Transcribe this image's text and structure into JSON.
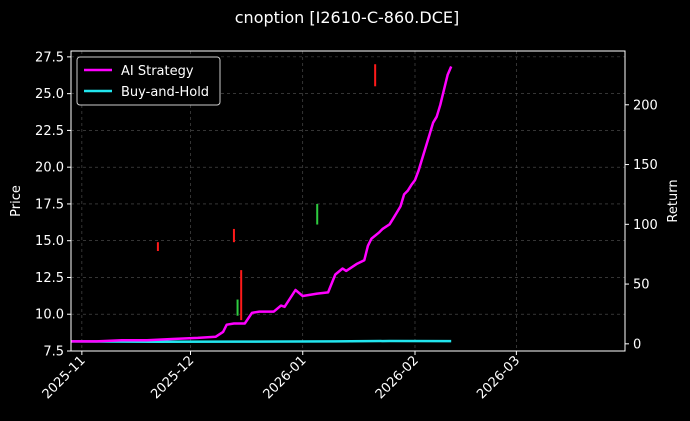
{
  "chart_data": {
    "type": "line",
    "title": "cnoption [I2610-C-860.DCE]",
    "left_axis": {
      "label": "Price",
      "range": [
        7.5,
        27.9
      ],
      "ticks": [
        7.5,
        10.0,
        12.5,
        15.0,
        17.5,
        20.0,
        22.5,
        25.0,
        27.5
      ],
      "tick_labels": [
        "7.5",
        "10.0",
        "12.5",
        "15.0",
        "17.5",
        "20.0",
        "22.5",
        "25.0",
        "27.5"
      ]
    },
    "right_axis": {
      "label": "Return",
      "range": [
        -6,
        245
      ],
      "ticks": [
        0,
        50,
        100,
        150,
        200
      ],
      "tick_labels": [
        "0",
        "50",
        "100",
        "150",
        "200"
      ]
    },
    "x_axis": {
      "range": [
        "2025-10-29",
        "2026-03-31"
      ],
      "ticks": [
        "2025-11-01",
        "2025-12-01",
        "2026-01-01",
        "2026-02-01",
        "2026-03-01"
      ],
      "tick_labels": [
        "2025-11",
        "2025-12",
        "2026-01",
        "2026-02",
        "2026-03"
      ]
    },
    "grid": true,
    "legend_position": "top-left",
    "series": [
      {
        "name": "AI Strategy",
        "color": "#ff00ff",
        "axis": "right",
        "points": [
          [
            "2025-10-29",
            2
          ],
          [
            "2025-11-05",
            2
          ],
          [
            "2025-11-12",
            3
          ],
          [
            "2025-11-19",
            3
          ],
          [
            "2025-11-26",
            4
          ],
          [
            "2025-12-03",
            5
          ],
          [
            "2025-12-08",
            6
          ],
          [
            "2025-12-10",
            10
          ],
          [
            "2025-12-11",
            16
          ],
          [
            "2025-12-13",
            17
          ],
          [
            "2025-12-16",
            17
          ],
          [
            "2025-12-18",
            26
          ],
          [
            "2025-12-20",
            27
          ],
          [
            "2025-12-24",
            27
          ],
          [
            "2025-12-26",
            32
          ],
          [
            "2025-12-27",
            31
          ],
          [
            "2025-12-30",
            45
          ],
          [
            "2026-01-01",
            40
          ],
          [
            "2026-01-05",
            42
          ],
          [
            "2026-01-08",
            43
          ],
          [
            "2026-01-10",
            58
          ],
          [
            "2026-01-12",
            63
          ],
          [
            "2026-01-13",
            61
          ],
          [
            "2026-01-16",
            67
          ],
          [
            "2026-01-18",
            70
          ],
          [
            "2026-01-19",
            82
          ],
          [
            "2026-01-20",
            88
          ],
          [
            "2026-01-22",
            93
          ],
          [
            "2026-01-23",
            96
          ],
          [
            "2026-01-25",
            100
          ],
          [
            "2026-01-26",
            105
          ],
          [
            "2026-01-27",
            110
          ],
          [
            "2026-01-28",
            115
          ],
          [
            "2026-01-29",
            125
          ],
          [
            "2026-01-30",
            128
          ],
          [
            "2026-01-31",
            133
          ],
          [
            "2026-02-01",
            137
          ],
          [
            "2026-02-02",
            145
          ],
          [
            "2026-02-03",
            155
          ],
          [
            "2026-02-05",
            175
          ],
          [
            "2026-02-06",
            185
          ],
          [
            "2026-02-07",
            190
          ],
          [
            "2026-02-08",
            200
          ],
          [
            "2026-02-10",
            225
          ],
          [
            "2026-02-11",
            232
          ]
        ]
      },
      {
        "name": "Buy-and-Hold",
        "color": "#22e5ee",
        "axis": "right",
        "points": [
          [
            "2025-10-29",
            2
          ],
          [
            "2025-11-20",
            1.8
          ],
          [
            "2025-12-15",
            1.9
          ],
          [
            "2026-01-10",
            2.0
          ],
          [
            "2026-01-25",
            2.4
          ],
          [
            "2026-02-11",
            2.3
          ]
        ]
      }
    ],
    "price_candles": [
      {
        "date": "2025-11-22",
        "low": 14.3,
        "high": 14.9,
        "color": "#ff1a1a"
      },
      {
        "date": "2025-12-13",
        "low": 14.9,
        "high": 15.8,
        "color": "#ff1a1a"
      },
      {
        "date": "2025-12-14",
        "low": 9.9,
        "high": 11.0,
        "color": "#2ecc40"
      },
      {
        "date": "2025-12-15",
        "low": 9.6,
        "high": 13.0,
        "color": "#ff1a1a"
      },
      {
        "date": "2026-01-05",
        "low": 16.1,
        "high": 17.5,
        "color": "#2ecc40"
      },
      {
        "date": "2026-01-21",
        "low": 25.5,
        "high": 27.0,
        "color": "#ff1a1a"
      }
    ]
  }
}
